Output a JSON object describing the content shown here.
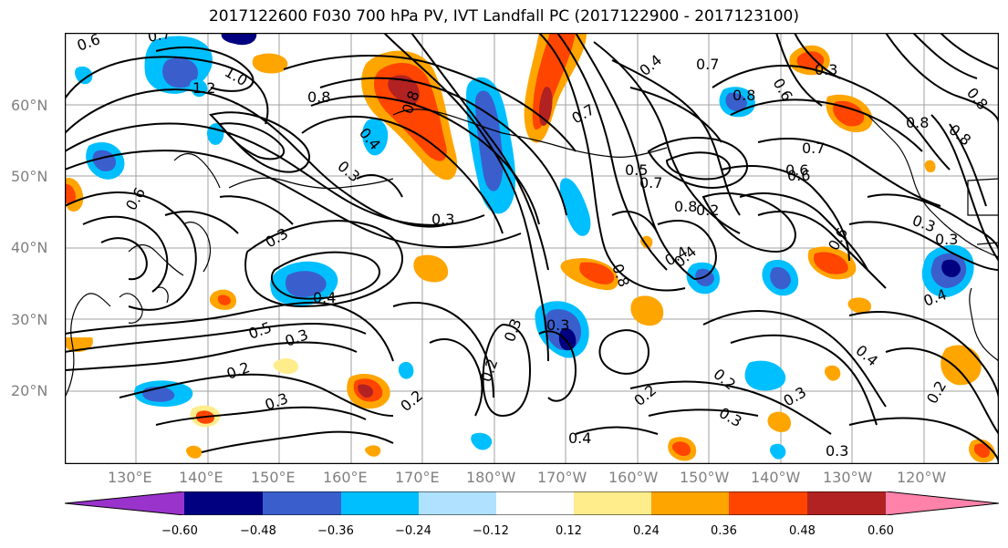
{
  "title": "2017122600 F030 700 hPa PV, IVT Landfall PC (2017122900 - 2017123100)",
  "lat_labels": [
    "60°N",
    "50°N",
    "40°N",
    "30°N",
    "20°N"
  ],
  "lon_labels": [
    "130°E",
    "140°E",
    "150°E",
    "160°E",
    "170°E",
    "180°W",
    "170°W",
    "160°W",
    "150°W",
    "140°W",
    "130°W",
    "120°W"
  ],
  "colorbar": {
    "ticks": [
      "−0.60",
      "−0.48",
      "−0.36",
      "−0.24",
      "−0.12",
      "0.12",
      "0.24",
      "0.36",
      "0.48",
      "0.60"
    ],
    "colors": [
      "#9933cc",
      "#000080",
      "#3a5fcd",
      "#00bfff",
      "#b0e2ff",
      "#ffffff",
      "#ffec8b",
      "#ffa500",
      "#ff4500",
      "#b22222",
      "#ff82ab"
    ]
  },
  "contour_labels": [
    "0.6",
    "0.7",
    "1.0",
    "1.2",
    "0.8",
    "0.8",
    "0.6",
    "0.3",
    "0.4",
    "0.3",
    "0.3",
    "0.2",
    "0.7",
    "0.5",
    "0.7",
    "0.8",
    "0.6",
    "0.8",
    "0.4",
    "0.7",
    "0.6",
    "0.3",
    "0.4",
    "0.8",
    "0.3",
    "0.4",
    "0.5",
    "0.3",
    "0.2",
    "0.3",
    "0.2",
    "0.3",
    "0.4",
    "0.2",
    "0.2",
    "0.3",
    "0.3",
    "0.2",
    "0.3",
    "0.4",
    "0.2",
    "0.8",
    "0.6",
    "0.8",
    "0.7",
    "0.6",
    "0.8",
    "0.3",
    "0.3",
    "0.4",
    "0.4"
  ]
}
